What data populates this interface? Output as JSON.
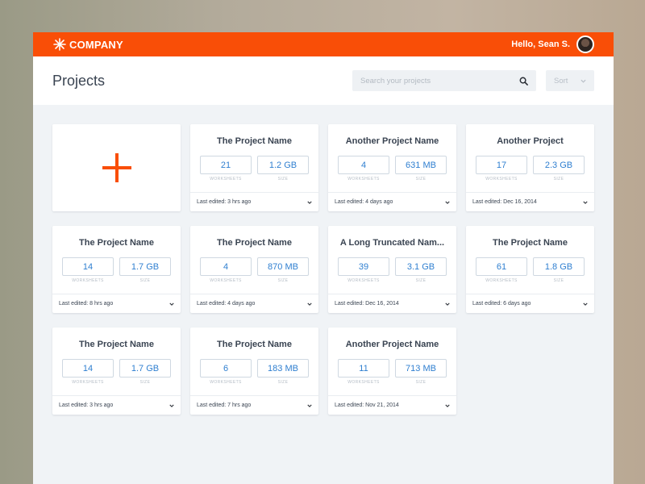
{
  "topbar": {
    "brand": "COMPANY",
    "greeting": "Hello, Sean S."
  },
  "header": {
    "title": "Projects",
    "search_placeholder": "Search your projects",
    "sort_label": "Sort"
  },
  "labels": {
    "worksheets": "WORKSHEETS",
    "size": "SIZE"
  },
  "projects": [
    {
      "name": "The Project Name",
      "worksheets": "21",
      "size": "1.2 GB",
      "edited": "Last edited: 3 hrs ago"
    },
    {
      "name": "Another Project Name",
      "worksheets": "4",
      "size": "631 MB",
      "edited": "Last edited: 4 days ago"
    },
    {
      "name": "Another Project",
      "worksheets": "17",
      "size": "2.3 GB",
      "edited": "Last edited: Dec 16, 2014"
    },
    {
      "name": "The Project Name",
      "worksheets": "14",
      "size": "1.7 GB",
      "edited": "Last edited: 8 hrs ago"
    },
    {
      "name": "The Project Name",
      "worksheets": "4",
      "size": "870 MB",
      "edited": "Last edited: 4 days ago"
    },
    {
      "name": "A Long Truncated Nam...",
      "worksheets": "39",
      "size": "3.1 GB",
      "edited": "Last edited: Dec 16, 2014"
    },
    {
      "name": "The Project Name",
      "worksheets": "61",
      "size": "1.8 GB",
      "edited": "Last edited: 6 days ago"
    },
    {
      "name": "The Project Name",
      "worksheets": "14",
      "size": "1.7 GB",
      "edited": "Last edited: 3 hrs ago"
    },
    {
      "name": "The Project Name",
      "worksheets": "6",
      "size": "183 MB",
      "edited": "Last edited: 7 hrs ago"
    },
    {
      "name": "Another Project Name",
      "worksheets": "11",
      "size": "713 MB",
      "edited": "Last edited: Nov 21, 2014"
    }
  ],
  "colors": {
    "accent": "#f94e07",
    "value": "#2f7fd0",
    "background": "#f0f3f6"
  },
  "icons": {
    "brand": "burst-logo-icon",
    "search": "search-icon",
    "sort": "chevron-down-icon",
    "add": "plus-icon"
  }
}
